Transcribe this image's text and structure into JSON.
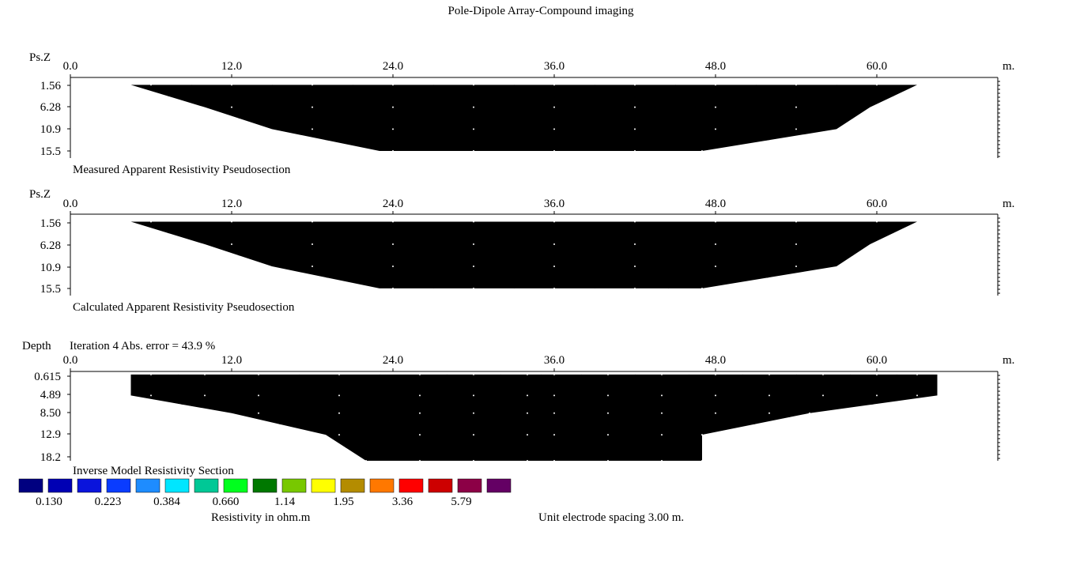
{
  "title": "Pole-Dipole Array-Compound imaging",
  "x_ticks": [
    "0.0",
    "12.0",
    "24.0",
    "36.0",
    "48.0",
    "60.0"
  ],
  "x_unit": "m.",
  "panels": [
    {
      "key": "measured",
      "ylabel": "Ps.Z",
      "caption": "Measured Apparent Resistivity Pseudosection",
      "header_note": "",
      "y_ticks": [
        "1.56",
        "6.28",
        "10.9",
        "15.5"
      ]
    },
    {
      "key": "calculated",
      "ylabel": "Ps.Z",
      "caption": "Calculated Apparent Resistivity Pseudosection",
      "header_note": "",
      "y_ticks": [
        "1.56",
        "6.28",
        "10.9",
        "15.5"
      ]
    },
    {
      "key": "inverse",
      "ylabel": "Depth",
      "caption": "Inverse Model Resistivity Section",
      "header_note": "Iteration 4 Abs. error = 43.9 %",
      "y_ticks": [
        "0.615",
        "4.89",
        "8.50",
        "12.9",
        "18.2"
      ]
    }
  ],
  "legend": {
    "colors": [
      "#000080",
      "#0000b4",
      "#0a14dc",
      "#0a3cff",
      "#1e8cff",
      "#00e6ff",
      "#00c896",
      "#00ff1e",
      "#007800",
      "#78c800",
      "#ffff00",
      "#b48c00",
      "#ff7800",
      "#ff0000",
      "#cd0000",
      "#8c0046",
      "#640064"
    ],
    "labels": [
      "0.130",
      "0.223",
      "0.384",
      "0.660",
      "1.14",
      "1.95",
      "3.36",
      "5.79"
    ],
    "unit_label": "Resistivity in ohm.m"
  },
  "electrode_spacing": "Unit electrode spacing 3.00 m.",
  "chart_data": [
    {
      "type": "heatmap",
      "title": "Measured Apparent Resistivity Pseudosection",
      "xlabel": "",
      "ylabel": "Ps.Z",
      "x_unit": "m.",
      "xlim": [
        0,
        64
      ],
      "ylim": [
        0,
        17
      ],
      "section_outline": [
        [
          4.5,
          1.56
        ],
        [
          63,
          1.56
        ],
        [
          59.5,
          6.28
        ],
        [
          57,
          10.9
        ],
        [
          47,
          15.5
        ],
        [
          23,
          15.5
        ],
        [
          15,
          10.9
        ],
        [
          10,
          6.28
        ],
        [
          4.5,
          1.56
        ]
      ],
      "bands": [
        {
          "depth": 1.56,
          "x": [
            6,
            12,
            18,
            24,
            30,
            36,
            42,
            48,
            54,
            60
          ],
          "class": [
            2,
            5,
            7,
            6,
            5,
            4,
            5,
            4,
            5,
            1
          ]
        },
        {
          "depth": 6.28,
          "x": [
            12,
            18,
            24,
            30,
            36,
            42,
            48,
            54
          ],
          "class": [
            4,
            6,
            8,
            7,
            9,
            8,
            7,
            11
          ]
        },
        {
          "depth": 10.9,
          "x": [
            18,
            24,
            30,
            36,
            42,
            48,
            54
          ],
          "class": [
            10,
            8,
            9,
            11,
            13,
            14,
            13
          ]
        },
        {
          "depth": 15.5,
          "x": [
            24,
            30,
            36,
            42,
            47
          ],
          "class": [
            8,
            9,
            10,
            9,
            11
          ]
        }
      ]
    },
    {
      "type": "heatmap",
      "title": "Calculated Apparent Resistivity Pseudosection",
      "xlabel": "",
      "ylabel": "Ps.Z",
      "x_unit": "m.",
      "xlim": [
        0,
        64
      ],
      "ylim": [
        0,
        17
      ],
      "section_outline": [
        [
          4.5,
          1.56
        ],
        [
          63,
          1.56
        ],
        [
          59.5,
          6.28
        ],
        [
          57,
          10.9
        ],
        [
          47,
          15.5
        ],
        [
          23,
          15.5
        ],
        [
          15,
          10.9
        ],
        [
          10,
          6.28
        ],
        [
          4.5,
          1.56
        ]
      ],
      "bands": [
        {
          "depth": 1.56,
          "x": [
            6,
            12,
            18,
            24,
            30,
            36,
            42,
            48,
            54,
            60
          ],
          "class": [
            2,
            6,
            7,
            6,
            5,
            5,
            6,
            5,
            6,
            7
          ]
        },
        {
          "depth": 6.28,
          "x": [
            12,
            18,
            24,
            30,
            36,
            42,
            48,
            54
          ],
          "class": [
            5,
            6,
            7,
            8,
            7,
            7,
            9,
            8
          ]
        },
        {
          "depth": 10.9,
          "x": [
            18,
            24,
            30,
            36,
            42,
            48,
            54
          ],
          "class": [
            7,
            8,
            8,
            7,
            8,
            9,
            10
          ]
        },
        {
          "depth": 15.5,
          "x": [
            24,
            30,
            36,
            42,
            47
          ],
          "class": [
            8,
            8,
            8,
            9,
            10
          ]
        }
      ]
    },
    {
      "type": "heatmap",
      "title": "Inverse Model Resistivity Section",
      "xlabel": "",
      "ylabel": "Depth",
      "x_unit": "m.",
      "xlim": [
        0,
        64
      ],
      "ylim": [
        0,
        18.2
      ],
      "section_outline": [
        [
          4.5,
          0.615
        ],
        [
          64.5,
          0.615
        ],
        [
          64.5,
          4.89
        ],
        [
          55,
          8.5
        ],
        [
          47,
          12.9
        ],
        [
          47,
          18.2
        ],
        [
          22,
          18.2
        ],
        [
          19,
          12.9
        ],
        [
          12,
          8.5
        ],
        [
          4.5,
          4.89
        ],
        [
          4.5,
          0.615
        ]
      ],
      "bands": [
        {
          "depth": 0.615,
          "x": [
            6,
            10,
            14,
            20,
            26,
            30,
            34,
            36,
            40,
            44,
            48,
            52,
            56,
            60,
            63
          ],
          "class": [
            9,
            11,
            13,
            6,
            5,
            4,
            7,
            9,
            5,
            1,
            1,
            5,
            9,
            4,
            12
          ]
        },
        {
          "depth": 4.89,
          "x": [
            6,
            10,
            14,
            20,
            26,
            30,
            34,
            36,
            40,
            44,
            48,
            52,
            56,
            60,
            63
          ],
          "class": [
            3,
            3,
            4,
            5,
            4,
            5,
            9,
            11,
            5,
            1,
            1,
            4,
            9,
            8,
            10
          ]
        },
        {
          "depth": 8.5,
          "x": [
            14,
            20,
            26,
            30,
            34,
            36,
            40,
            44,
            48,
            52,
            55
          ],
          "class": [
            3,
            4,
            8,
            9,
            12,
            12,
            10,
            10,
            10,
            11,
            10
          ]
        },
        {
          "depth": 12.9,
          "x": [
            20,
            26,
            30,
            34,
            36,
            40,
            44,
            47
          ],
          "class": [
            10,
            12,
            13,
            13,
            13,
            13,
            13,
            12
          ]
        },
        {
          "depth": 18.2,
          "x": [
            22,
            26,
            30,
            34,
            36,
            40,
            44,
            47
          ],
          "class": [
            15,
            14,
            14,
            14,
            14,
            14,
            14,
            15
          ]
        }
      ]
    }
  ]
}
